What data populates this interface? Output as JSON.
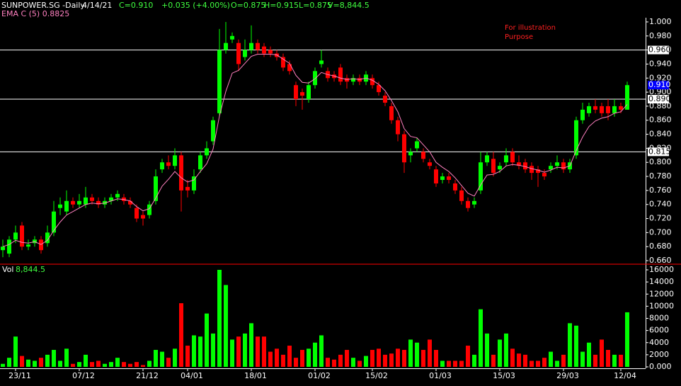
{
  "chart_data": {
    "type": "candlestick",
    "title": "SUNPOWER.SG -Daily",
    "header": {
      "date": "4/14/21",
      "close": "C=0.910",
      "change": "+0.035 (+4.00%)",
      "open": "O=0.875",
      "high": "H=0.915",
      "low": "L=0.875",
      "volume": "V=8,844.5"
    },
    "annotation": [
      "For illustration",
      "Purpose"
    ],
    "up_color": "#00ff00",
    "down_color": "#ff0000",
    "categories": [
      null,
      null,
      "23/11",
      null,
      null,
      null,
      null,
      null,
      null,
      null,
      null,
      null,
      "07/12",
      null,
      null,
      null,
      null,
      null,
      null,
      null,
      null,
      null,
      "21/12",
      null,
      null,
      null,
      null,
      null,
      null,
      "04/01",
      null,
      null,
      null,
      null,
      null,
      null,
      null,
      null,
      null,
      "18/01",
      null,
      null,
      null,
      null,
      null,
      null,
      null,
      null,
      null,
      "01/02",
      null,
      null,
      null,
      null,
      null,
      null,
      null,
      null,
      "15/02",
      null,
      null,
      null,
      null,
      null,
      null,
      null,
      null,
      null,
      "01/03",
      null,
      null,
      null,
      null,
      null,
      null,
      null,
      null,
      null,
      "15/03",
      null,
      null,
      null,
      null,
      null,
      null,
      null,
      null,
      null,
      "29/03",
      null,
      null,
      null,
      null,
      null,
      null,
      null,
      null,
      "12/04",
      null
    ],
    "open": [
      0.675,
      0.67,
      0.69,
      0.71,
      0.68,
      0.685,
      0.69,
      0.685,
      0.7,
      0.735,
      0.73,
      0.745,
      0.74,
      0.74,
      0.75,
      0.745,
      0.74,
      0.745,
      0.75,
      0.75,
      0.745,
      0.735,
      0.725,
      0.725,
      0.745,
      0.79,
      0.8,
      0.795,
      0.81,
      0.765,
      0.76,
      0.79,
      0.81,
      0.83,
      0.87,
      0.96,
      0.975,
      0.97,
      0.95,
      0.96,
      0.97,
      0.965,
      0.96,
      0.955,
      0.95,
      0.94,
      0.91,
      0.9,
      0.89,
      0.91,
      0.94,
      0.93,
      0.925,
      0.935,
      0.92,
      0.915,
      0.92,
      0.915,
      0.92,
      0.91,
      0.895,
      0.88,
      0.86,
      0.84,
      0.81,
      0.82,
      0.815,
      0.8,
      0.79,
      0.775,
      0.78,
      0.77,
      0.76,
      0.745,
      0.74,
      0.76,
      0.8,
      0.805,
      0.79,
      0.8,
      0.815,
      0.8,
      0.8,
      0.795,
      0.79,
      0.785,
      0.79,
      0.795,
      0.8,
      0.79,
      0.81,
      0.86,
      0.87,
      0.88,
      0.88,
      0.88,
      0.87,
      0.88,
      0.875
    ],
    "high": [
      0.69,
      0.695,
      0.71,
      0.715,
      0.69,
      0.695,
      0.695,
      0.71,
      0.745,
      0.75,
      0.76,
      0.75,
      0.755,
      0.765,
      0.755,
      0.75,
      0.75,
      0.755,
      0.76,
      0.755,
      0.75,
      0.74,
      0.73,
      0.745,
      0.79,
      0.805,
      0.81,
      0.82,
      0.815,
      0.775,
      0.79,
      0.815,
      0.83,
      0.865,
      0.99,
      1.0,
      0.985,
      0.975,
      0.975,
      0.995,
      0.975,
      0.97,
      0.965,
      0.96,
      0.955,
      0.945,
      0.915,
      0.905,
      0.915,
      0.935,
      0.96,
      0.935,
      0.93,
      0.94,
      0.925,
      0.925,
      0.925,
      0.93,
      0.925,
      0.915,
      0.9,
      0.885,
      0.865,
      0.845,
      0.82,
      0.835,
      0.82,
      0.805,
      0.795,
      0.785,
      0.785,
      0.775,
      0.765,
      0.75,
      0.75,
      0.815,
      0.815,
      0.815,
      0.8,
      0.82,
      0.82,
      0.81,
      0.805,
      0.8,
      0.795,
      0.79,
      0.8,
      0.81,
      0.805,
      0.805,
      0.865,
      0.885,
      0.885,
      0.89,
      0.885,
      0.89,
      0.89,
      0.885,
      0.915
    ],
    "low": [
      0.665,
      0.665,
      0.685,
      0.675,
      0.675,
      0.68,
      0.67,
      0.68,
      0.695,
      0.725,
      0.725,
      0.735,
      0.735,
      0.735,
      0.74,
      0.735,
      0.735,
      0.74,
      0.745,
      0.74,
      0.735,
      0.715,
      0.71,
      0.72,
      0.74,
      0.785,
      0.79,
      0.79,
      0.73,
      0.75,
      0.755,
      0.785,
      0.805,
      0.825,
      0.865,
      0.955,
      0.97,
      0.93,
      0.945,
      0.955,
      0.955,
      0.95,
      0.95,
      0.945,
      0.93,
      0.925,
      0.88,
      0.875,
      0.885,
      0.905,
      0.935,
      0.915,
      0.915,
      0.91,
      0.905,
      0.91,
      0.91,
      0.91,
      0.905,
      0.895,
      0.88,
      0.855,
      0.83,
      0.785,
      0.8,
      0.815,
      0.8,
      0.79,
      0.765,
      0.77,
      0.77,
      0.755,
      0.74,
      0.73,
      0.735,
      0.755,
      0.795,
      0.78,
      0.785,
      0.795,
      0.795,
      0.79,
      0.785,
      0.775,
      0.765,
      0.775,
      0.785,
      0.79,
      0.785,
      0.785,
      0.805,
      0.855,
      0.865,
      0.87,
      0.865,
      0.86,
      0.865,
      0.87,
      0.875
    ],
    "close": [
      0.68,
      0.69,
      0.7,
      0.68,
      0.683,
      0.69,
      0.675,
      0.7,
      0.73,
      0.74,
      0.745,
      0.74,
      0.745,
      0.75,
      0.745,
      0.74,
      0.745,
      0.75,
      0.755,
      0.745,
      0.74,
      0.72,
      0.72,
      0.74,
      0.78,
      0.8,
      0.795,
      0.81,
      0.76,
      0.76,
      0.78,
      0.81,
      0.82,
      0.86,
      0.96,
      0.97,
      0.98,
      0.94,
      0.96,
      0.97,
      0.96,
      0.955,
      0.955,
      0.95,
      0.935,
      0.93,
      0.89,
      0.895,
      0.91,
      0.93,
      0.945,
      0.92,
      0.92,
      0.915,
      0.915,
      0.92,
      0.915,
      0.925,
      0.91,
      0.9,
      0.885,
      0.86,
      0.84,
      0.8,
      0.815,
      0.83,
      0.805,
      0.795,
      0.77,
      0.78,
      0.775,
      0.76,
      0.745,
      0.735,
      0.745,
      0.8,
      0.81,
      0.785,
      0.795,
      0.81,
      0.8,
      0.795,
      0.79,
      0.785,
      0.785,
      0.78,
      0.795,
      0.8,
      0.79,
      0.8,
      0.86,
      0.875,
      0.88,
      0.875,
      0.87,
      0.87,
      0.88,
      0.875,
      0.91
    ],
    "ema": {
      "name": "EMA C (5) 0.8825",
      "color": "#ff80c0",
      "values": [
        0.68,
        0.683,
        0.689,
        0.686,
        0.685,
        0.687,
        0.683,
        0.689,
        0.703,
        0.715,
        0.725,
        0.73,
        0.735,
        0.74,
        0.742,
        0.741,
        0.742,
        0.745,
        0.748,
        0.747,
        0.745,
        0.737,
        0.731,
        0.734,
        0.749,
        0.766,
        0.776,
        0.787,
        0.778,
        0.772,
        0.775,
        0.787,
        0.798,
        0.819,
        0.866,
        0.901,
        0.927,
        0.931,
        0.941,
        0.951,
        0.954,
        0.954,
        0.954,
        0.953,
        0.947,
        0.941,
        0.924,
        0.914,
        0.913,
        0.919,
        0.928,
        0.925,
        0.923,
        0.92,
        0.918,
        0.919,
        0.918,
        0.92,
        0.917,
        0.911,
        0.902,
        0.888,
        0.872,
        0.848,
        0.837,
        0.835,
        0.825,
        0.815,
        0.8,
        0.793,
        0.787,
        0.778,
        0.767,
        0.756,
        0.752,
        0.768,
        0.782,
        0.783,
        0.787,
        0.795,
        0.797,
        0.796,
        0.794,
        0.791,
        0.789,
        0.786,
        0.789,
        0.793,
        0.792,
        0.795,
        0.817,
        0.836,
        0.851,
        0.859,
        0.863,
        0.865,
        0.87,
        0.872,
        0.8825
      ]
    },
    "ylim": [
      0.656,
      1.006
    ],
    "yticks": [
      {
        "value": 0.66,
        "label": "0.660"
      },
      {
        "value": 0.68,
        "label": "0.680"
      },
      {
        "value": 0.7,
        "label": "0.700"
      },
      {
        "value": 0.72,
        "label": "0.720"
      },
      {
        "value": 0.74,
        "label": "0.740"
      },
      {
        "value": 0.76,
        "label": "0.760"
      },
      {
        "value": 0.78,
        "label": "0.780"
      },
      {
        "value": 0.8,
        "label": "0.800"
      },
      {
        "value": 0.82,
        "label": "0.820"
      },
      {
        "value": 0.84,
        "label": "0.840"
      },
      {
        "value": 0.86,
        "label": "0.860"
      },
      {
        "value": 0.88,
        "label": "0.880"
      },
      {
        "value": 0.9,
        "label": "0.900"
      },
      {
        "value": 0.92,
        "label": "0.920"
      },
      {
        "value": 0.94,
        "label": "0.940"
      },
      {
        "value": 0.96,
        "label": "0.960"
      },
      {
        "value": 0.98,
        "label": "0.980"
      },
      {
        "value": 1.0,
        "label": "1.000"
      }
    ],
    "hlines": [
      {
        "value": 0.96,
        "label": "0.960"
      },
      {
        "value": 0.89,
        "label": "0.890"
      },
      {
        "value": 0.815,
        "label": "0.815"
      }
    ],
    "last_price": {
      "value": 0.91,
      "label": "0.910",
      "color": "#0000ff"
    },
    "volume": {
      "name": "Vol",
      "label": "8,844.5",
      "values": [
        500,
        1500,
        5000,
        1800,
        1200,
        1000,
        1500,
        2000,
        2800,
        1000,
        3000,
        500,
        800,
        2000,
        800,
        1000,
        500,
        800,
        1500,
        800,
        500,
        800,
        300,
        1000,
        2800,
        2500,
        1500,
        3000,
        10500,
        3500,
        5200,
        5000,
        8800,
        5500,
        16000,
        13500,
        4500,
        5000,
        5500,
        7200,
        5000,
        5000,
        2500,
        3000,
        2000,
        3500,
        1500,
        2800,
        3000,
        4000,
        5200,
        1500,
        1200,
        2000,
        2800,
        1500,
        1000,
        1800,
        2800,
        3000,
        2000,
        2200,
        3000,
        2800,
        4500,
        4000,
        2800,
        4500,
        2800,
        1000,
        1000,
        1000,
        1000,
        3500,
        2000,
        9500,
        5500,
        2000,
        4500,
        5500,
        3000,
        2200,
        2000,
        1000,
        1000,
        1500,
        2500,
        1000,
        2000,
        7200,
        6800,
        2500,
        4000,
        2000,
        4500,
        2800,
        2000,
        2000,
        9000
      ],
      "ylim": [
        0,
        16000
      ],
      "yticks": [
        {
          "value": 0,
          "label": "0.000"
        },
        2000,
        4000,
        6000,
        8000,
        10000,
        12000,
        14000,
        16000
      ]
    }
  }
}
